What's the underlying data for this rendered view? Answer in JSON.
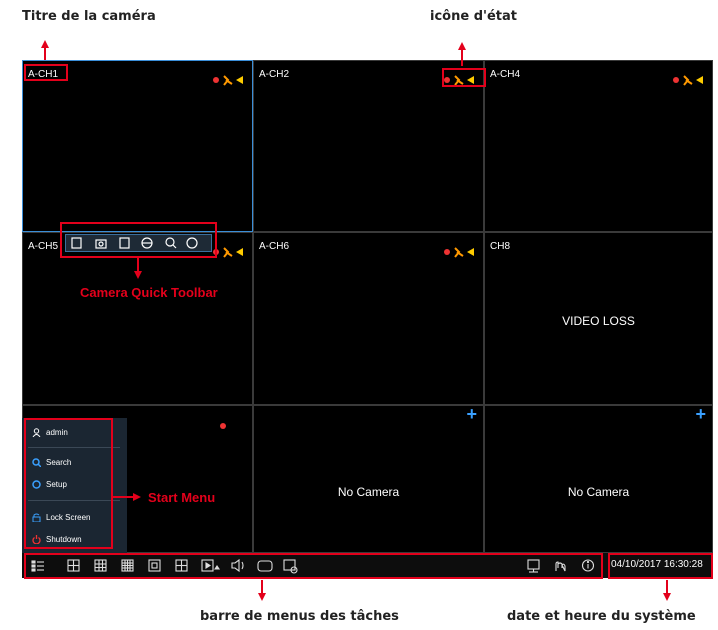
{
  "annotations": {
    "camera_title": "Titre de la caméra",
    "status_icon": "icône d'état",
    "quick_toolbar": "Camera Quick Toolbar",
    "start_menu": "Start Menu",
    "taskbar": "barre de menus des tâches",
    "datetime": "date et heure du système"
  },
  "channels": [
    "A-CH1",
    "A-CH2",
    "A-CH4",
    "A-CH5",
    "A-CH6",
    "CH8"
  ],
  "video_loss": "VIDEO LOSS",
  "no_camera": [
    "No Camera",
    "No Camera"
  ],
  "start_menu": [
    "admin",
    "Search",
    "Setup",
    "Lock Screen",
    "Shutdown"
  ],
  "datetime": "04/10/2017 16:30:28"
}
